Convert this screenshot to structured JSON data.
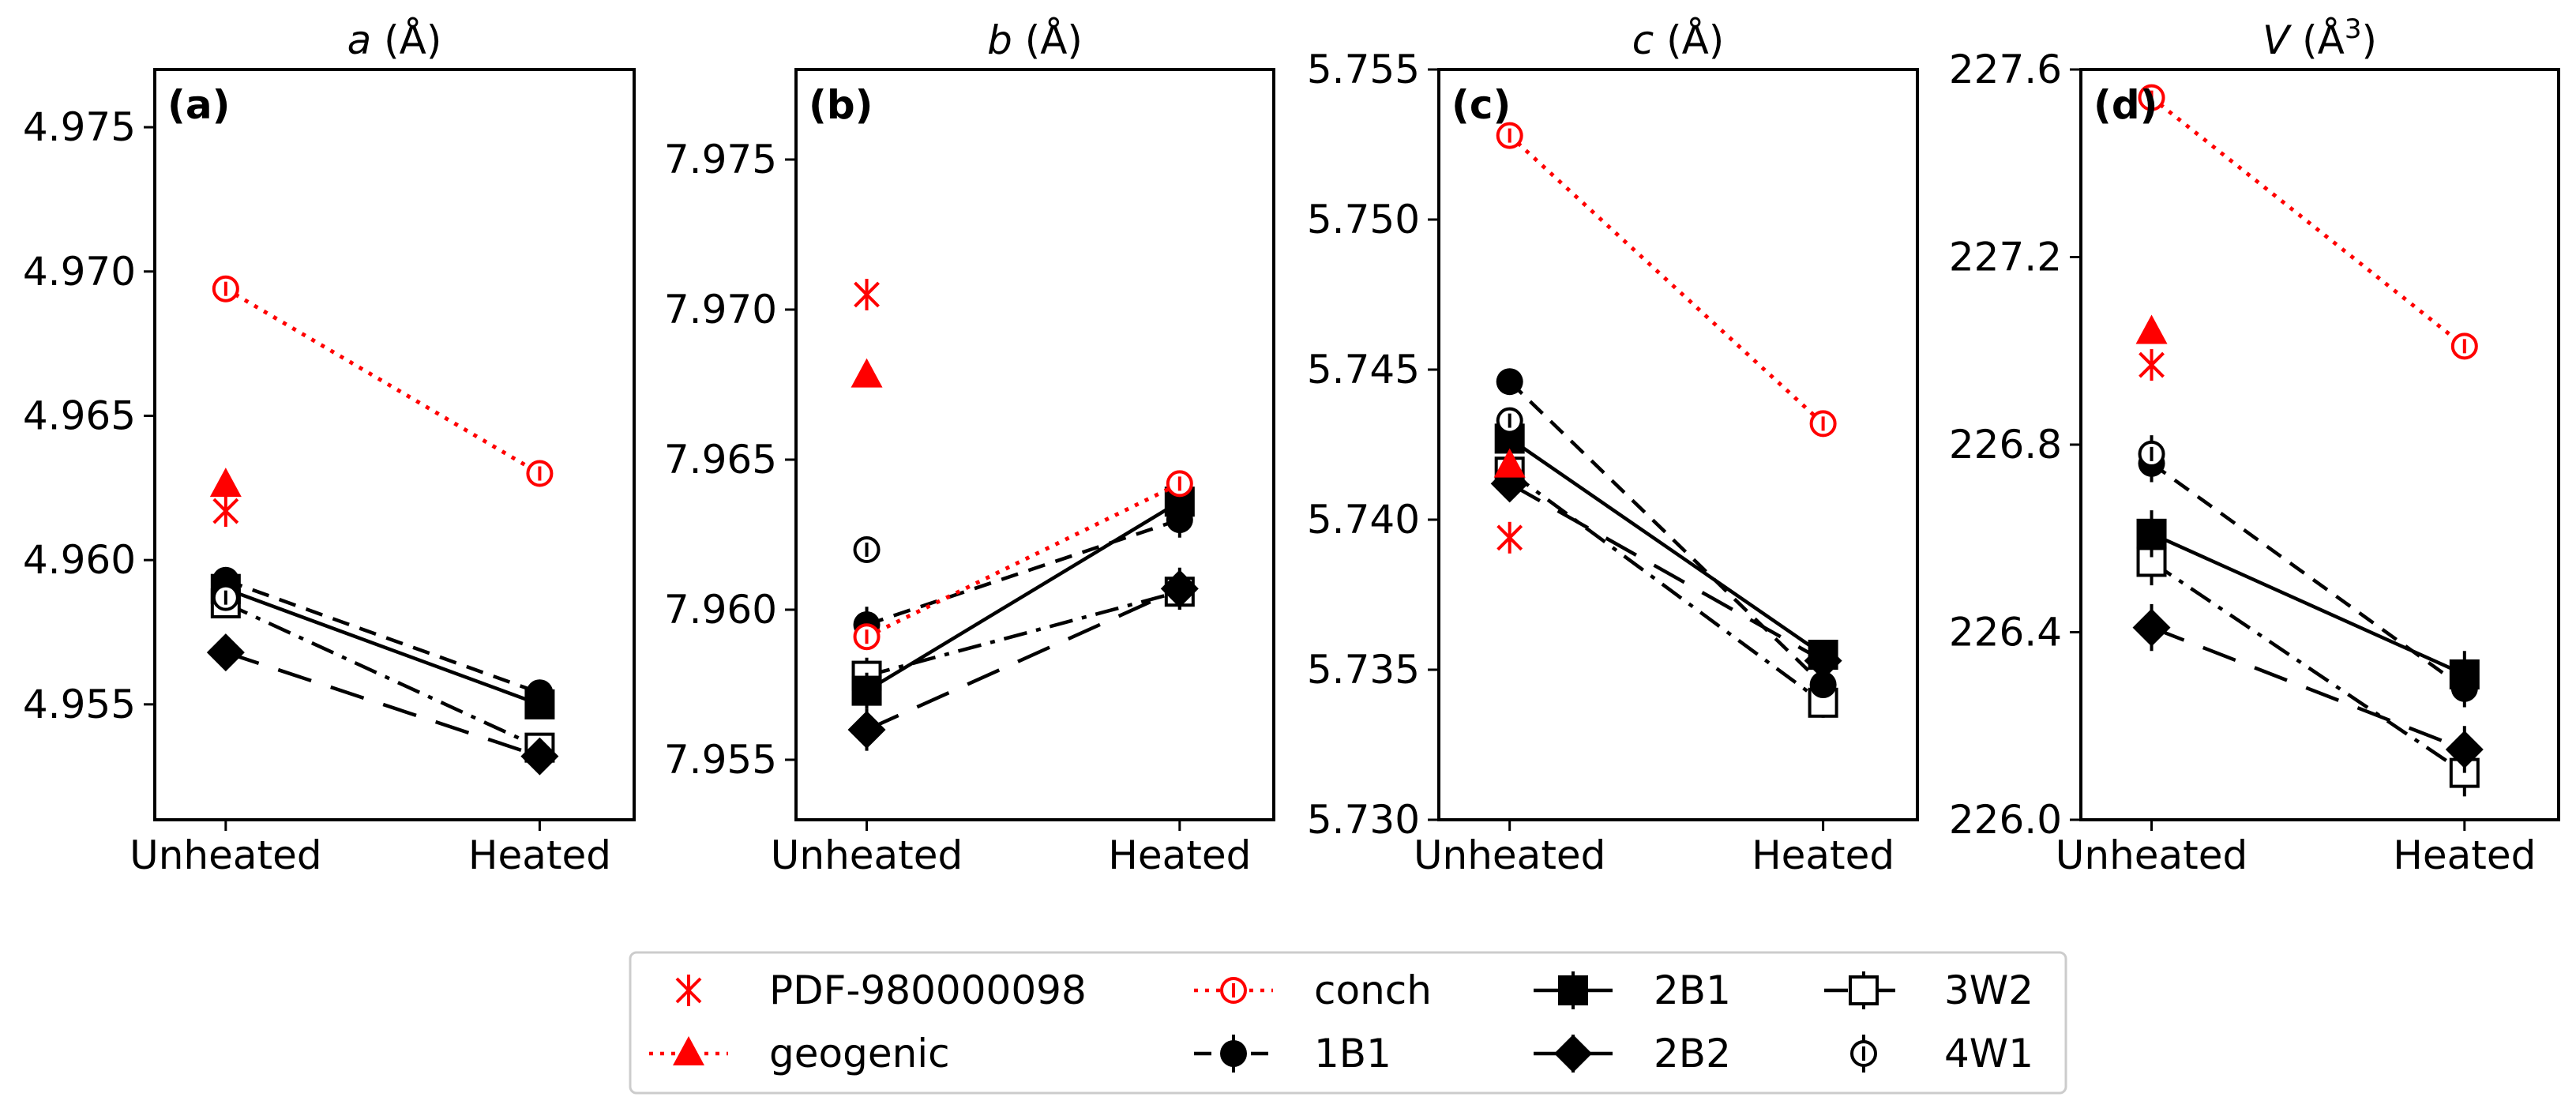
{
  "legend_placement": "bottom-center",
  "legend": [
    {
      "name": "PDF-980000098",
      "color": "#ff0000",
      "marker": "x",
      "line": "none"
    },
    {
      "name": "geogenic",
      "color": "#ff0000",
      "marker": "triangle-filled",
      "line": "dotted"
    },
    {
      "name": "conch",
      "color": "#ff0000",
      "marker": "circle-open",
      "line": "dotted"
    },
    {
      "name": "1B1",
      "color": "#000000",
      "marker": "circle-filled",
      "line": "dashed"
    },
    {
      "name": "2B1",
      "color": "#000000",
      "marker": "square-filled",
      "line": "solid"
    },
    {
      "name": "2B2",
      "color": "#000000",
      "marker": "diamond-filled",
      "line": "long-dashed"
    },
    {
      "name": "3W2",
      "color": "#000000",
      "marker": "square-open",
      "line": "dashdot"
    },
    {
      "name": "4W1",
      "color": "#000000",
      "marker": "circle-open",
      "line": "none"
    }
  ],
  "chart_data": [
    {
      "type": "line",
      "panel_label": "(a)",
      "title_var": "a",
      "title_unit": " (Å)",
      "categories": [
        "Unheated",
        "Heated"
      ],
      "ylim": [
        4.951,
        4.977
      ],
      "yticks": [
        4.955,
        4.96,
        4.965,
        4.97,
        4.975
      ],
      "ytick_labels": [
        "4.955",
        "4.960",
        "4.965",
        "4.970",
        "4.975"
      ],
      "series": [
        {
          "name": "PDF-980000098",
          "values": [
            4.9617,
            null
          ],
          "err": [
            0,
            0
          ]
        },
        {
          "name": "geogenic",
          "values": [
            4.9626,
            null
          ],
          "err": [
            0,
            0
          ]
        },
        {
          "name": "conch",
          "values": [
            4.9694,
            4.963
          ],
          "err": [
            0,
            0
          ]
        },
        {
          "name": "1B1",
          "values": [
            4.9593,
            4.9554
          ],
          "err": [
            0.0003,
            0.0003
          ]
        },
        {
          "name": "2B1",
          "values": [
            4.959,
            4.955
          ],
          "err": [
            0.0004,
            0.0004
          ]
        },
        {
          "name": "2B2",
          "values": [
            4.9568,
            4.9532
          ],
          "err": [
            0.0003,
            0.0003
          ]
        },
        {
          "name": "3W2",
          "values": [
            4.9585,
            4.9535
          ],
          "err": [
            0.0004,
            0.0004
          ]
        },
        {
          "name": "4W1",
          "values": [
            4.9587,
            null
          ],
          "err": [
            0.0003,
            0
          ]
        }
      ]
    },
    {
      "type": "line",
      "panel_label": "(b)",
      "title_var": "b",
      "title_unit": " (Å)",
      "categories": [
        "Unheated",
        "Heated"
      ],
      "ylim": [
        7.953,
        7.978
      ],
      "yticks": [
        7.955,
        7.96,
        7.965,
        7.97,
        7.975
      ],
      "ytick_labels": [
        "7.955",
        "7.960",
        "7.965",
        "7.970",
        "7.975"
      ],
      "series": [
        {
          "name": "PDF-980000098",
          "values": [
            7.9705,
            null
          ],
          "err": [
            0,
            0
          ]
        },
        {
          "name": "geogenic",
          "values": [
            7.9678,
            null
          ],
          "err": [
            0,
            0
          ]
        },
        {
          "name": "conch",
          "values": [
            7.9591,
            7.9642
          ],
          "err": [
            0,
            0
          ]
        },
        {
          "name": "1B1",
          "values": [
            7.9595,
            7.963
          ],
          "err": [
            0.0006,
            0.0006
          ]
        },
        {
          "name": "2B1",
          "values": [
            7.9573,
            7.9636
          ],
          "err": [
            0.0006,
            0.0006
          ]
        },
        {
          "name": "2B2",
          "values": [
            7.956,
            7.9607
          ],
          "err": [
            0.0007,
            0.0007
          ]
        },
        {
          "name": "3W2",
          "values": [
            7.9578,
            7.9606
          ],
          "err": [
            0.0006,
            0.0006
          ]
        },
        {
          "name": "4W1",
          "values": [
            7.962,
            null
          ],
          "err": [
            0.0004,
            0
          ]
        }
      ]
    },
    {
      "type": "line",
      "panel_label": "(c)",
      "title_var": "c",
      "title_unit": " (Å)",
      "categories": [
        "Unheated",
        "Heated"
      ],
      "ylim": [
        5.73,
        5.755
      ],
      "yticks": [
        5.73,
        5.735,
        5.74,
        5.745,
        5.75,
        5.755
      ],
      "ytick_labels": [
        "5.730",
        "5.735",
        "5.740",
        "5.745",
        "5.750",
        "5.755"
      ],
      "series": [
        {
          "name": "PDF-980000098",
          "values": [
            5.7394,
            null
          ],
          "err": [
            0,
            0
          ]
        },
        {
          "name": "geogenic",
          "values": [
            5.7418,
            null
          ],
          "err": [
            0,
            0
          ]
        },
        {
          "name": "conch",
          "values": [
            5.7528,
            5.7432
          ],
          "err": [
            0,
            0
          ]
        },
        {
          "name": "1B1",
          "values": [
            5.7446,
            5.7345
          ],
          "err": [
            0.0004,
            0.0004
          ]
        },
        {
          "name": "2B1",
          "values": [
            5.7427,
            5.7355
          ],
          "err": [
            0.0005,
            0.0005
          ]
        },
        {
          "name": "2B2",
          "values": [
            5.7412,
            5.7353
          ],
          "err": [
            0.0005,
            0.0005
          ]
        },
        {
          "name": "3W2",
          "values": [
            5.7416,
            5.7339
          ],
          "err": [
            0.0005,
            0.0005
          ]
        },
        {
          "name": "4W1",
          "values": [
            5.7433,
            null
          ],
          "err": [
            0.0004,
            0
          ]
        }
      ]
    },
    {
      "type": "line",
      "panel_label": "(d)",
      "title_var": "V",
      "title_unit": " (Å",
      "title_sup": "3",
      "title_close": ")",
      "categories": [
        "Unheated",
        "Heated"
      ],
      "ylim": [
        226.0,
        227.6
      ],
      "yticks": [
        226.0,
        226.4,
        226.8,
        227.2,
        227.6
      ],
      "ytick_labels": [
        "226.0",
        "226.4",
        "226.8",
        "227.2",
        "227.6"
      ],
      "series": [
        {
          "name": "PDF-980000098",
          "values": [
            226.97,
            null
          ],
          "err": [
            0,
            0
          ]
        },
        {
          "name": "geogenic",
          "values": [
            227.04,
            null
          ],
          "err": [
            0,
            0
          ]
        },
        {
          "name": "conch",
          "values": [
            227.54,
            227.01
          ],
          "err": [
            0,
            0
          ]
        },
        {
          "name": "1B1",
          "values": [
            226.76,
            226.28
          ],
          "err": [
            0.04,
            0.04
          ]
        },
        {
          "name": "2B1",
          "values": [
            226.61,
            226.31
          ],
          "err": [
            0.05,
            0.05
          ]
        },
        {
          "name": "2B2",
          "values": [
            226.41,
            226.15
          ],
          "err": [
            0.05,
            0.05
          ]
        },
        {
          "name": "3W2",
          "values": [
            226.55,
            226.1
          ],
          "err": [
            0.05,
            0.05
          ]
        },
        {
          "name": "4W1",
          "values": [
            226.78,
            null
          ],
          "err": [
            0.04,
            0
          ]
        }
      ]
    }
  ]
}
